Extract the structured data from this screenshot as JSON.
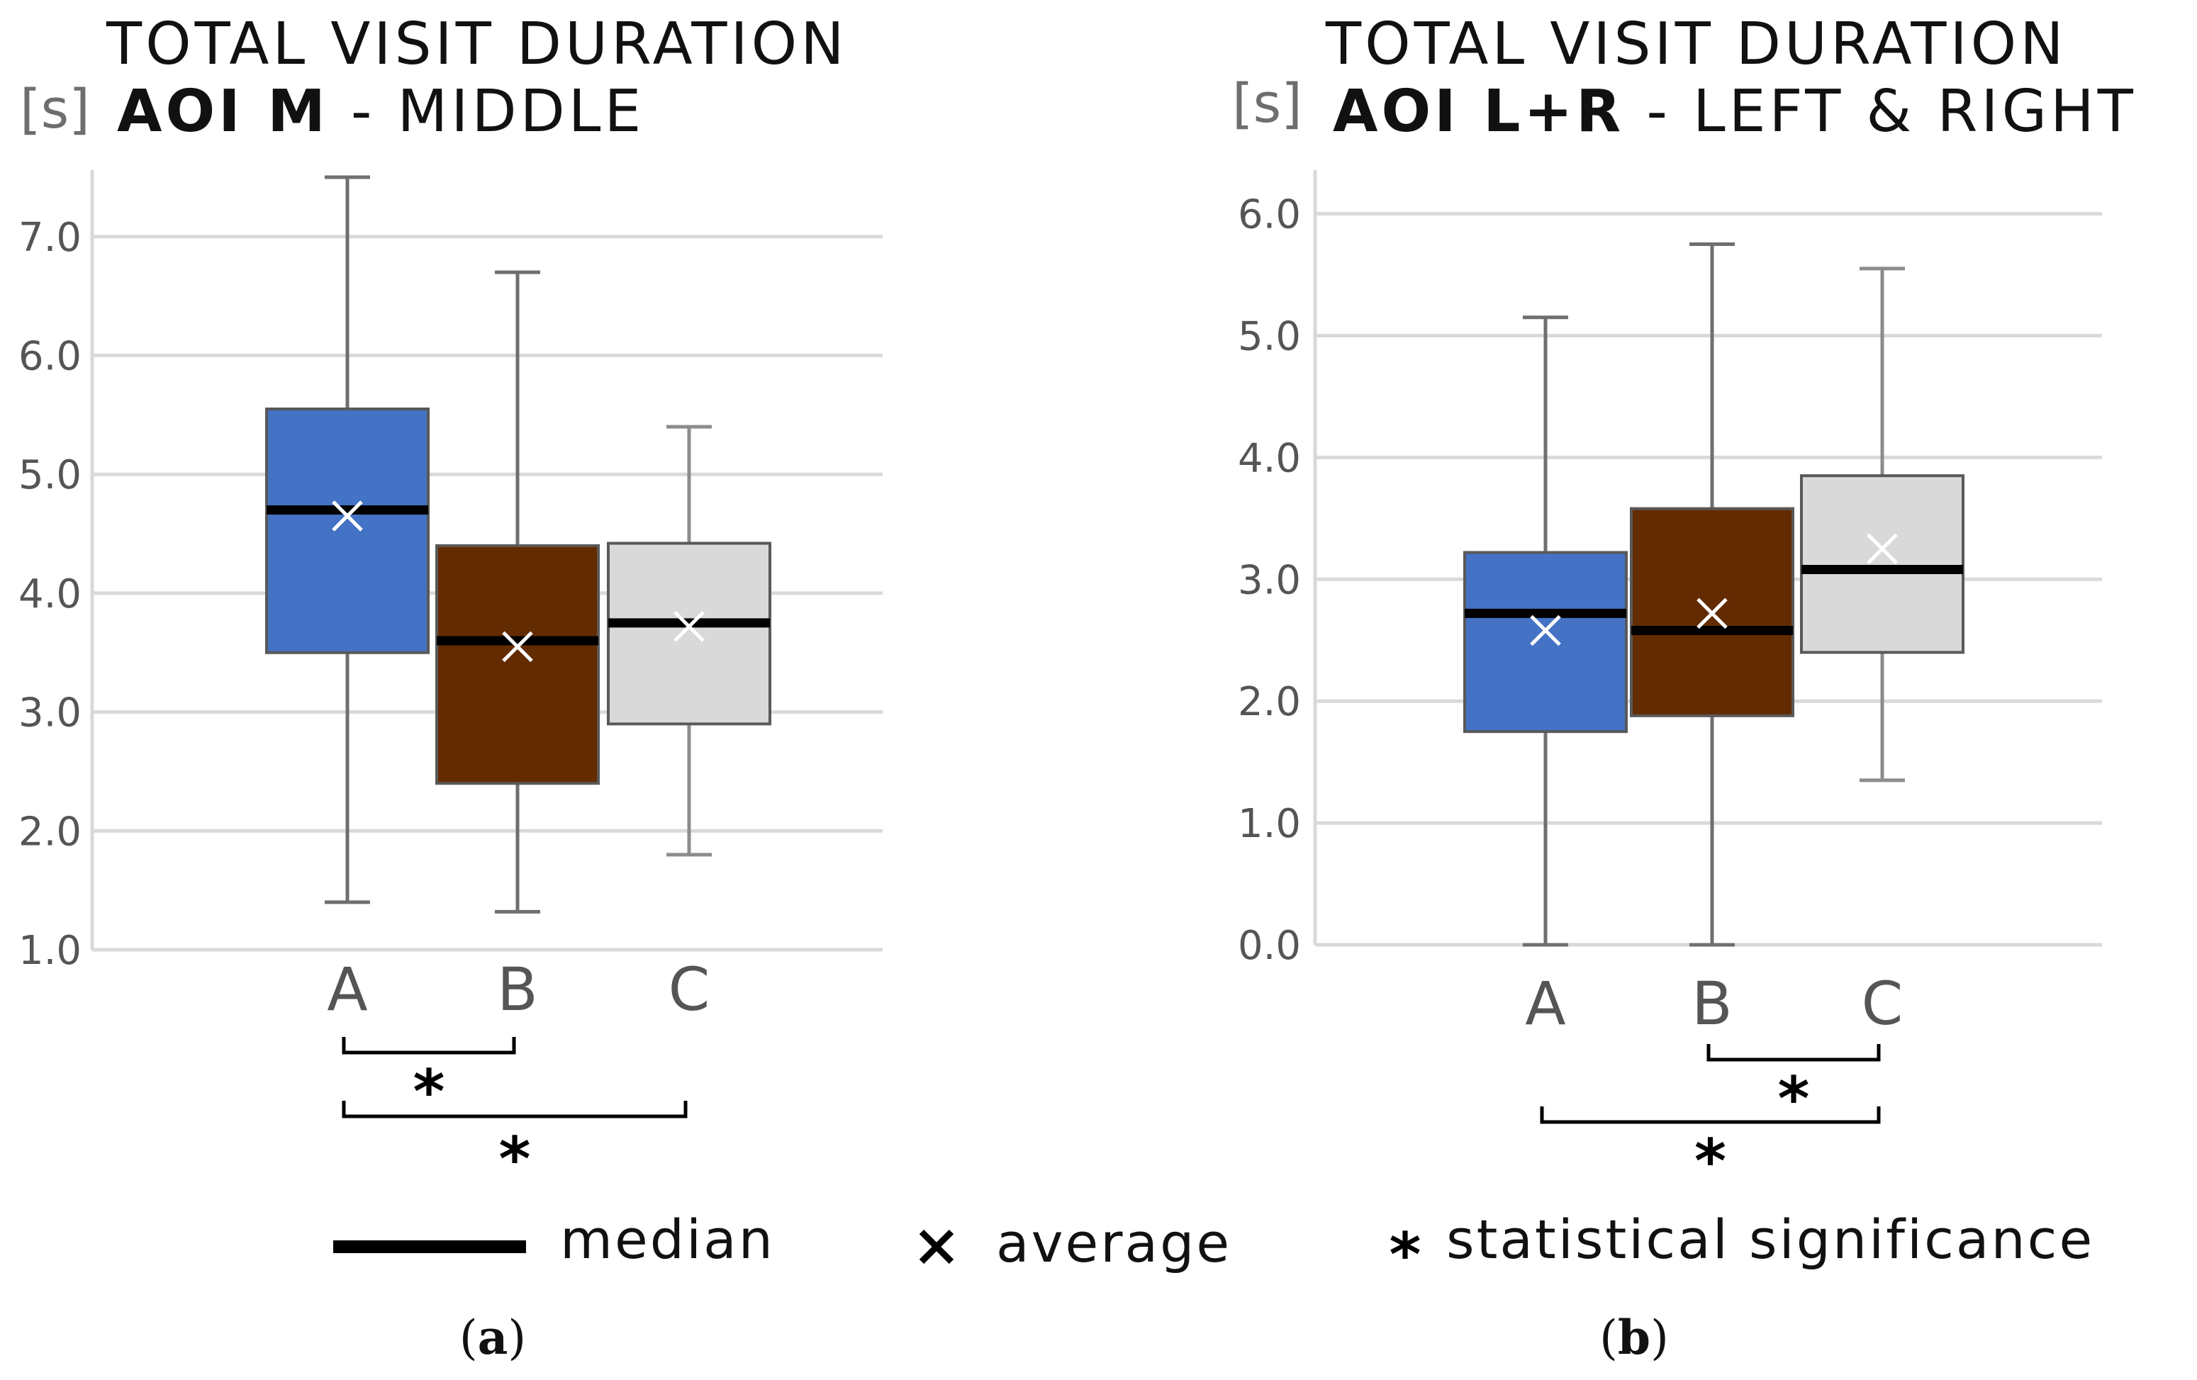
{
  "chart_data": [
    {
      "type": "box",
      "title_line1": "TOTAL VISIT DURATION",
      "unit": "[s]",
      "subtitle_bold": "AOI M",
      "subtitle_rest": "- MIDDLE",
      "ylim": [
        1.0,
        7.5
      ],
      "yticks": [
        "1.0",
        "2.0",
        "3.0",
        "4.0",
        "5.0",
        "6.0",
        "7.0"
      ],
      "categories": [
        "A",
        "B",
        "C"
      ],
      "boxes": [
        {
          "name": "A",
          "min": 1.4,
          "q1": 3.5,
          "median": 4.7,
          "q3": 5.55,
          "max": 7.5,
          "mean": 4.65,
          "color": "#4472c4"
        },
        {
          "name": "B",
          "min": 1.32,
          "q1": 2.4,
          "median": 3.6,
          "q3": 4.4,
          "max": 6.7,
          "mean": 3.55,
          "color": "#632b00"
        },
        {
          "name": "C",
          "min": 1.8,
          "q1": 2.9,
          "median": 3.75,
          "q3": 4.42,
          "max": 5.4,
          "mean": 3.72,
          "color": "#d9d9d9"
        }
      ],
      "significance": [
        {
          "from": "A",
          "to": "B",
          "label": "*"
        },
        {
          "from": "A",
          "to": "C",
          "label": "*"
        }
      ],
      "caption": "(a)"
    },
    {
      "type": "box",
      "title_line1": "TOTAL VISIT DURATION",
      "unit": "[s]",
      "subtitle_bold": "AOI L+R",
      "subtitle_rest": "- LEFT & RIGHT",
      "ylim": [
        0.0,
        6.3
      ],
      "yticks": [
        "0.0",
        "1.0",
        "2.0",
        "3.0",
        "4.0",
        "5.0",
        "6.0"
      ],
      "categories": [
        "A",
        "B",
        "C"
      ],
      "boxes": [
        {
          "name": "A",
          "min": 0.0,
          "q1": 1.75,
          "median": 2.72,
          "q3": 3.22,
          "max": 5.15,
          "mean": 2.58,
          "color": "#4472c4"
        },
        {
          "name": "B",
          "min": 0.0,
          "q1": 1.88,
          "median": 2.58,
          "q3": 3.58,
          "max": 5.75,
          "mean": 2.72,
          "color": "#632b00"
        },
        {
          "name": "C",
          "min": 1.35,
          "q1": 2.4,
          "median": 3.08,
          "q3": 3.85,
          "max": 5.55,
          "mean": 3.25,
          "color": "#d9d9d9"
        }
      ],
      "significance": [
        {
          "from": "B",
          "to": "C",
          "label": "*"
        },
        {
          "from": "A",
          "to": "C",
          "label": "*"
        }
      ],
      "caption": "(b)"
    }
  ],
  "legend": {
    "median_label": "median",
    "average_symbol": "x",
    "average_label": "average",
    "significance_symbol": "*",
    "significance_label": "statistical significance"
  },
  "colors": {
    "grid": "#d9d9d9",
    "whisker": "#7f7f7f",
    "median": "#000000",
    "mean_marker": "#ffffff"
  }
}
